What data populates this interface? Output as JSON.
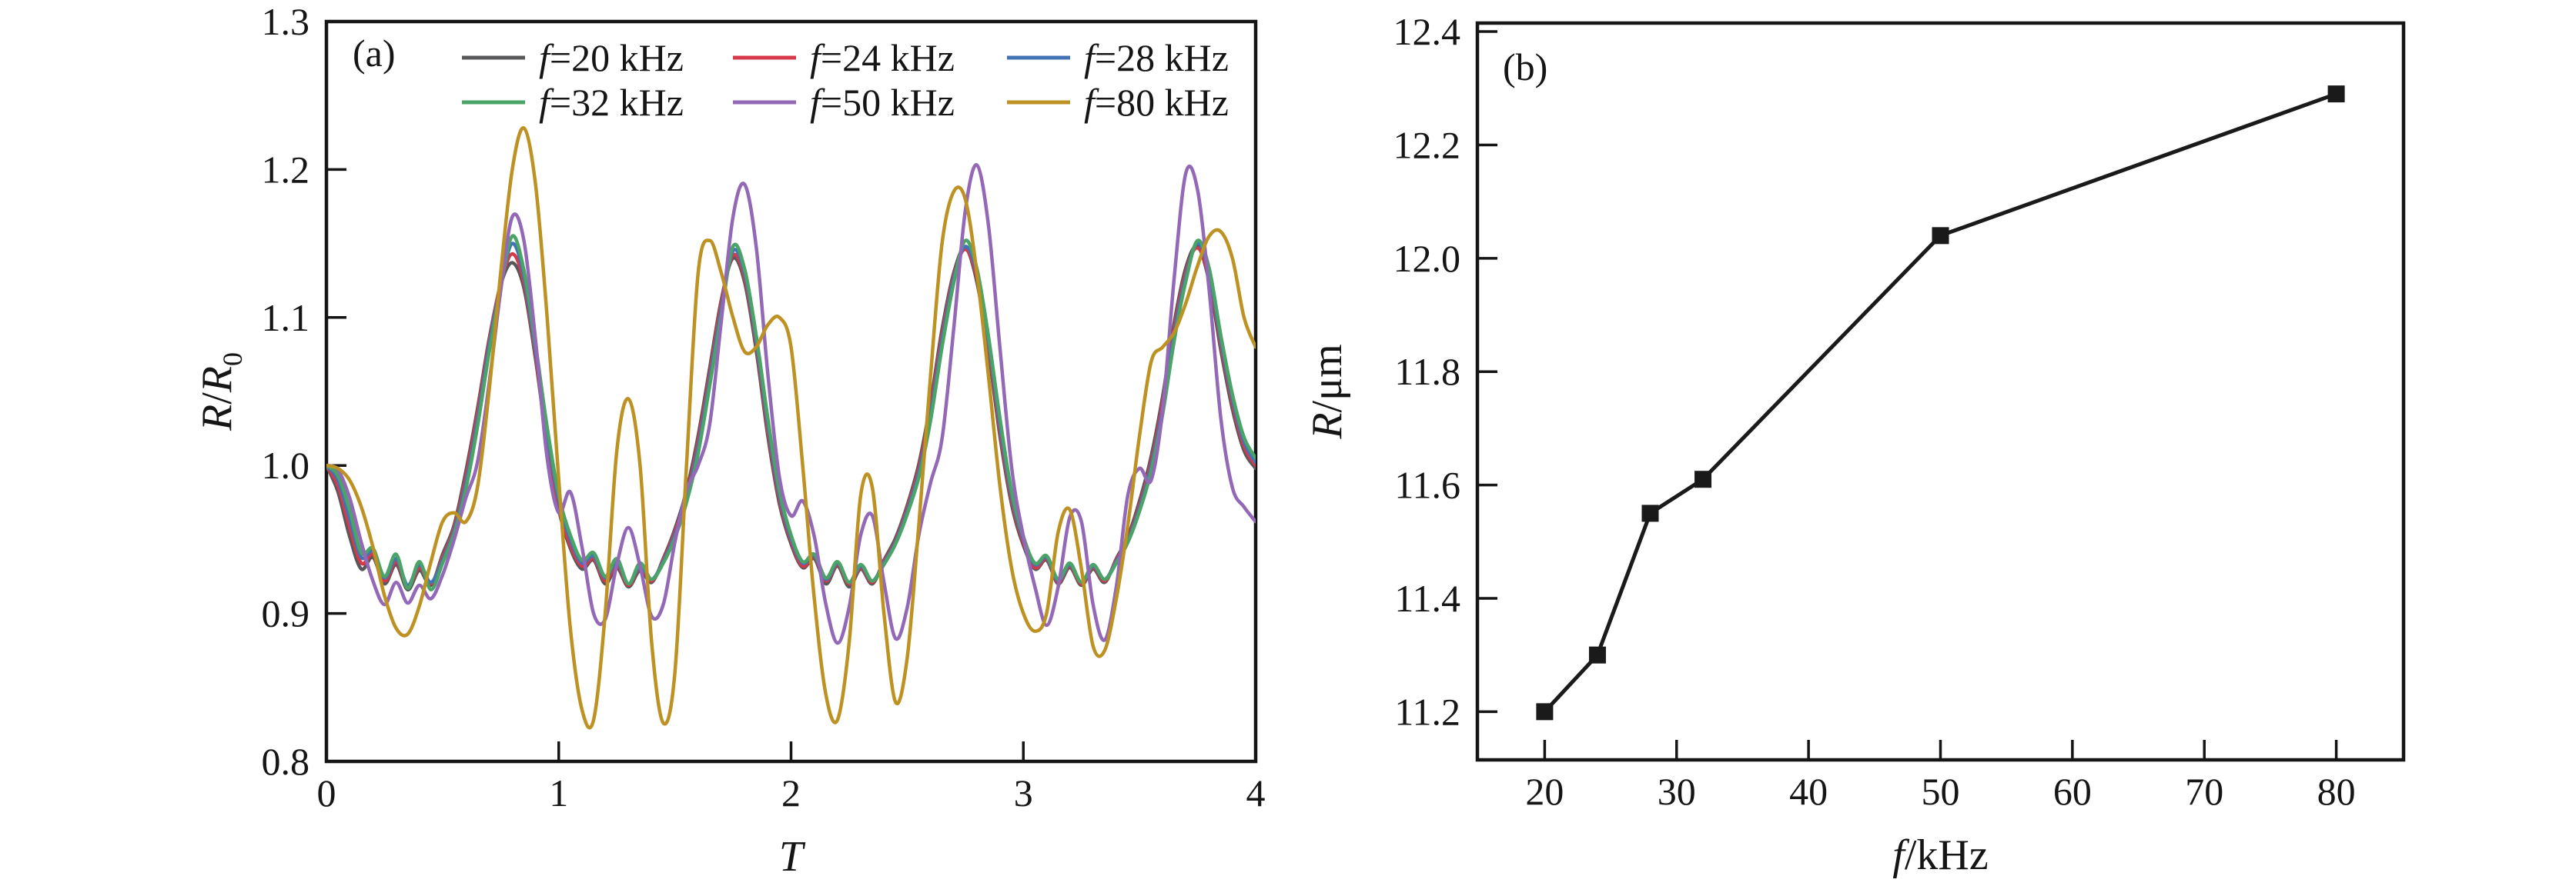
{
  "figure": {
    "background": "#ffffff",
    "ink_color": "#151515"
  },
  "chart_data": [
    {
      "type": "line",
      "panel_label": "(a)",
      "title": "",
      "xlabel": "T",
      "ylabel": "R/R0",
      "xlabel_parts": [
        {
          "t": "T",
          "i": true
        }
      ],
      "ylabel_parts": [
        {
          "t": "R",
          "i": true
        },
        {
          "t": "/"
        },
        {
          "t": "R",
          "i": true
        },
        {
          "t": "0",
          "sub": true
        }
      ],
      "xlim": [
        0,
        4
      ],
      "ylim": [
        0.8,
        1.3
      ],
      "xticks": [
        0,
        1,
        2,
        3,
        4
      ],
      "xtick_labels": [
        "0",
        "1",
        "2",
        "3",
        "4"
      ],
      "yticks": [
        0.8,
        0.9,
        1.0,
        1.1,
        1.2,
        1.3
      ],
      "ytick_labels": [
        "0.8",
        "0.9",
        "1.0",
        "1.1",
        "1.2",
        "1.3"
      ],
      "grid": false,
      "legend_position": "top-center-two-rows",
      "x_start": 0,
      "x_step": 0.05,
      "series": [
        {
          "label": "f=20 kHz",
          "label_parts": [
            {
              "t": "f",
              "i": true
            },
            {
              "t": "=20 kHz"
            }
          ],
          "color": "#58585a",
          "values": [
            1.0,
            0.982,
            0.952,
            0.93,
            0.938,
            0.92,
            0.933,
            0.916,
            0.929,
            0.919,
            0.94,
            0.96,
            0.996,
            1.038,
            1.085,
            1.122,
            1.137,
            1.12,
            1.072,
            1.015,
            0.97,
            0.944,
            0.93,
            0.936,
            0.92,
            0.931,
            0.918,
            0.929,
            0.921,
            0.937,
            0.957,
            0.983,
            1.02,
            1.066,
            1.112,
            1.14,
            1.124,
            1.078,
            1.02,
            0.974,
            0.947,
            0.931,
            0.937,
            0.92,
            0.932,
            0.918,
            0.93,
            0.92,
            0.936,
            0.951,
            0.973,
            1.001,
            1.042,
            1.092,
            1.13,
            1.147,
            1.124,
            1.077,
            1.019,
            0.973,
            0.946,
            0.93,
            0.936,
            0.92,
            0.931,
            0.919,
            0.93,
            0.921,
            0.937,
            0.952,
            0.976,
            1.006,
            1.047,
            1.097,
            1.134,
            1.148,
            1.124,
            1.078,
            1.038,
            1.01,
            0.998
          ]
        },
        {
          "label": "f=24 kHz",
          "label_parts": [
            {
              "t": "f",
              "i": true
            },
            {
              "t": "=24 kHz"
            }
          ],
          "color": "#d5394a",
          "values": [
            1.0,
            0.986,
            0.958,
            0.934,
            0.94,
            0.922,
            0.935,
            0.918,
            0.931,
            0.92,
            0.938,
            0.958,
            0.992,
            1.035,
            1.083,
            1.123,
            1.143,
            1.124,
            1.075,
            1.018,
            0.972,
            0.946,
            0.932,
            0.937,
            0.922,
            0.933,
            0.919,
            0.931,
            0.922,
            0.936,
            0.955,
            0.98,
            1.016,
            1.062,
            1.11,
            1.142,
            1.127,
            1.082,
            1.024,
            0.977,
            0.949,
            0.932,
            0.938,
            0.922,
            0.933,
            0.92,
            0.931,
            0.921,
            0.935,
            0.949,
            0.971,
            0.998,
            1.038,
            1.088,
            1.128,
            1.146,
            1.127,
            1.081,
            1.023,
            0.976,
            0.948,
            0.931,
            0.937,
            0.921,
            0.932,
            0.92,
            0.931,
            0.922,
            0.936,
            0.95,
            0.973,
            1.002,
            1.043,
            1.093,
            1.131,
            1.147,
            1.127,
            1.082,
            1.042,
            1.013,
            1.0
          ]
        },
        {
          "label": "f=28 kHz",
          "label_parts": [
            {
              "t": "f",
              "i": true
            },
            {
              "t": "=28 kHz"
            }
          ],
          "color": "#4473b5",
          "values": [
            1.0,
            0.99,
            0.964,
            0.938,
            0.942,
            0.924,
            0.937,
            0.919,
            0.933,
            0.921,
            0.936,
            0.956,
            0.988,
            1.03,
            1.08,
            1.122,
            1.15,
            1.128,
            1.078,
            1.022,
            0.976,
            0.95,
            0.934,
            0.939,
            0.924,
            0.935,
            0.92,
            0.932,
            0.923,
            0.935,
            0.953,
            0.978,
            1.012,
            1.058,
            1.106,
            1.145,
            1.13,
            1.085,
            1.028,
            0.98,
            0.951,
            0.934,
            0.939,
            0.923,
            0.934,
            0.921,
            0.932,
            0.922,
            0.934,
            0.948,
            0.969,
            0.995,
            1.034,
            1.084,
            1.126,
            1.148,
            1.13,
            1.084,
            1.027,
            0.979,
            0.95,
            0.933,
            0.938,
            0.922,
            0.933,
            0.921,
            0.932,
            0.923,
            0.935,
            0.949,
            0.971,
            0.999,
            1.039,
            1.089,
            1.128,
            1.15,
            1.13,
            1.085,
            1.045,
            1.016,
            1.002
          ]
        },
        {
          "label": "f=32 kHz",
          "label_parts": [
            {
              "t": "f",
              "i": true
            },
            {
              "t": "=32 kHz"
            }
          ],
          "color": "#4aa467",
          "values": [
            1.0,
            0.993,
            0.97,
            0.941,
            0.944,
            0.925,
            0.94,
            0.917,
            0.935,
            0.916,
            0.934,
            0.954,
            0.984,
            1.026,
            1.076,
            1.12,
            1.155,
            1.132,
            1.082,
            1.026,
            0.98,
            0.953,
            0.936,
            0.941,
            0.925,
            0.937,
            0.92,
            0.934,
            0.923,
            0.934,
            0.951,
            0.975,
            1.008,
            1.054,
            1.102,
            1.148,
            1.133,
            1.088,
            1.032,
            0.983,
            0.953,
            0.935,
            0.94,
            0.924,
            0.935,
            0.921,
            0.933,
            0.922,
            0.933,
            0.947,
            0.967,
            0.992,
            1.03,
            1.08,
            1.123,
            1.152,
            1.133,
            1.087,
            1.031,
            0.982,
            0.952,
            0.934,
            0.939,
            0.923,
            0.934,
            0.921,
            0.933,
            0.923,
            0.934,
            0.948,
            0.969,
            0.996,
            1.035,
            1.085,
            1.125,
            1.152,
            1.133,
            1.088,
            1.048,
            1.019,
            1.005
          ]
        },
        {
          "label": "f=50 kHz",
          "label_parts": [
            {
              "t": "f",
              "i": true
            },
            {
              "t": "=50 kHz"
            }
          ],
          "color": "#9368b7",
          "values": [
            1.0,
            0.997,
            0.978,
            0.948,
            0.922,
            0.906,
            0.921,
            0.907,
            0.919,
            0.91,
            0.926,
            0.95,
            0.978,
            1.002,
            1.055,
            1.118,
            1.168,
            1.152,
            1.085,
            1.005,
            0.968,
            0.982,
            0.945,
            0.9,
            0.896,
            0.933,
            0.958,
            0.932,
            0.898,
            0.906,
            0.948,
            0.983,
            1.0,
            1.028,
            1.098,
            1.168,
            1.19,
            1.148,
            1.062,
            0.992,
            0.966,
            0.976,
            0.952,
            0.906,
            0.88,
            0.904,
            0.953,
            0.966,
            0.921,
            0.883,
            0.904,
            0.953,
            0.988,
            1.018,
            1.092,
            1.172,
            1.203,
            1.162,
            1.078,
            0.998,
            0.952,
            0.918,
            0.892,
            0.918,
            0.965,
            0.962,
            0.906,
            0.882,
            0.918,
            0.98,
            0.998,
            0.99,
            1.038,
            1.128,
            1.198,
            1.186,
            1.118,
            1.032,
            0.985,
            0.972,
            0.962
          ]
        },
        {
          "label": "f=80 kHz",
          "label_parts": [
            {
              "t": "f",
              "i": true
            },
            {
              "t": "=80 kHz"
            }
          ],
          "color": "#bd9223",
          "values": [
            1.0,
            0.998,
            0.99,
            0.972,
            0.945,
            0.912,
            0.89,
            0.886,
            0.905,
            0.935,
            0.962,
            0.968,
            0.962,
            0.985,
            1.05,
            1.13,
            1.2,
            1.228,
            1.19,
            1.1,
            0.99,
            0.89,
            0.835,
            0.828,
            0.9,
            1.01,
            1.045,
            1.0,
            0.88,
            0.826,
            0.86,
            1.0,
            1.13,
            1.152,
            1.13,
            1.1,
            1.077,
            1.08,
            1.095,
            1.1,
            1.08,
            1.0,
            0.91,
            0.845,
            0.828,
            0.88,
            0.98,
            0.985,
            0.9,
            0.84,
            0.87,
            0.96,
            1.06,
            1.15,
            1.185,
            1.18,
            1.13,
            1.06,
            0.985,
            0.93,
            0.9,
            0.888,
            0.9,
            0.955,
            0.97,
            0.93,
            0.878,
            0.875,
            0.91,
            0.96,
            1.02,
            1.07,
            1.08,
            1.09,
            1.11,
            1.135,
            1.155,
            1.158,
            1.14,
            1.1,
            1.08
          ]
        }
      ]
    },
    {
      "type": "scatter-line",
      "panel_label": "(b)",
      "title": "",
      "xlabel": "f/kHz",
      "ylabel": "R/um",
      "xlabel_parts": [
        {
          "t": "f",
          "i": true
        },
        {
          "t": "/kHz"
        }
      ],
      "ylabel_parts": [
        {
          "t": "R",
          "i": true
        },
        {
          "t": "/μm"
        }
      ],
      "xlim": [
        14.9,
        85.1
      ],
      "ylim": [
        11.115,
        12.415
      ],
      "xticks": [
        20,
        30,
        40,
        50,
        60,
        70,
        80
      ],
      "xtick_labels": [
        "20",
        "30",
        "40",
        "50",
        "60",
        "70",
        "80"
      ],
      "yticks": [
        11.2,
        11.4,
        11.6,
        11.8,
        12.0,
        12.2,
        12.4
      ],
      "ytick_labels": [
        "11.2",
        "11.4",
        "11.6",
        "11.8",
        "12.0",
        "12.2",
        "12.4"
      ],
      "grid": false,
      "marker": "square",
      "color": "#1a1a1a",
      "x": [
        20,
        24,
        28,
        32,
        50,
        80
      ],
      "y": [
        11.2,
        11.3,
        11.55,
        11.61,
        12.04,
        12.29
      ]
    }
  ]
}
